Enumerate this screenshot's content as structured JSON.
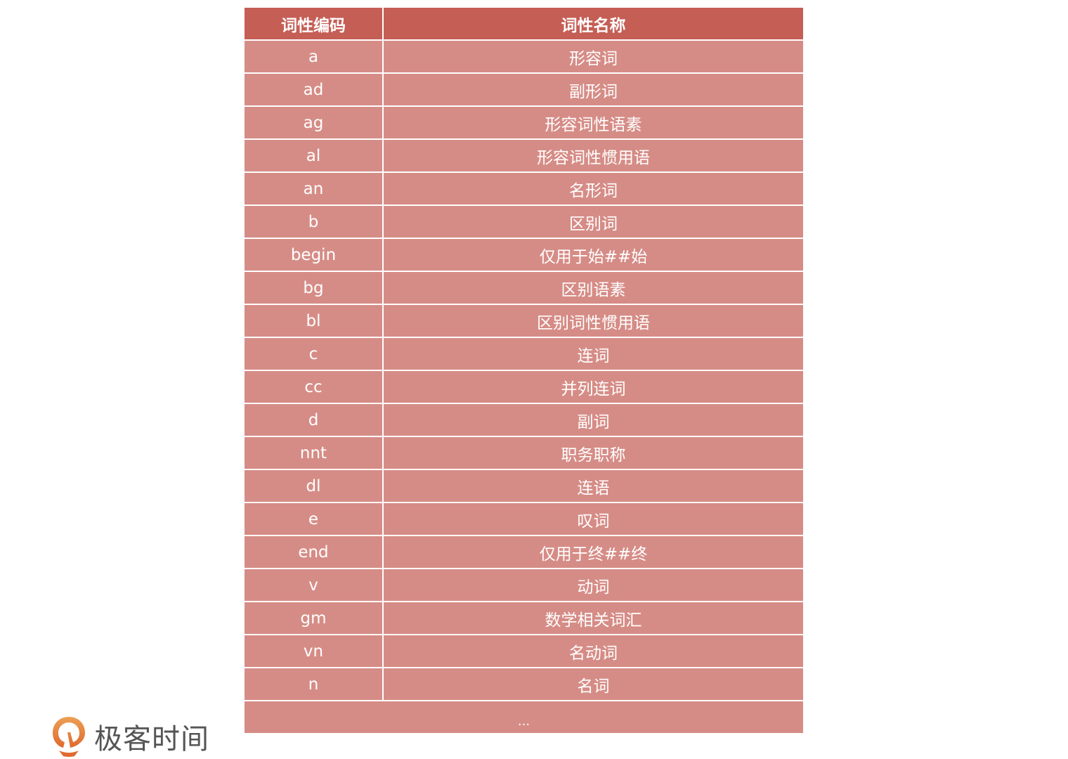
{
  "table": {
    "headers": [
      "词性编码",
      "词性名称"
    ],
    "rows": [
      [
        "a",
        "形容词"
      ],
      [
        "ad",
        "副形词"
      ],
      [
        "ag",
        "形容词性语素"
      ],
      [
        "al",
        "形容词性惯用语"
      ],
      [
        "an",
        "名形词"
      ],
      [
        "b",
        "区别词"
      ],
      [
        "begin",
        "仅用于始##始"
      ],
      [
        "bg",
        "区别语素"
      ],
      [
        "bl",
        "区别词性惯用语"
      ],
      [
        "c",
        "连词"
      ],
      [
        "cc",
        "并列连词"
      ],
      [
        "d",
        "副词"
      ],
      [
        "nnt",
        "职务职称"
      ],
      [
        "dl",
        "连语"
      ],
      [
        "e",
        "叹词"
      ],
      [
        "end",
        "仅用于终##终"
      ],
      [
        "v",
        "动词"
      ],
      [
        "gm",
        "数学相关词汇"
      ],
      [
        "vn",
        "名动词"
      ],
      [
        "n",
        "名词"
      ]
    ],
    "ellipsis": "...",
    "colors": {
      "header": "#c55e55",
      "row": "#d68c86"
    }
  },
  "logo": {
    "text": "极客时间",
    "icon": "geektime-logo-icon"
  }
}
